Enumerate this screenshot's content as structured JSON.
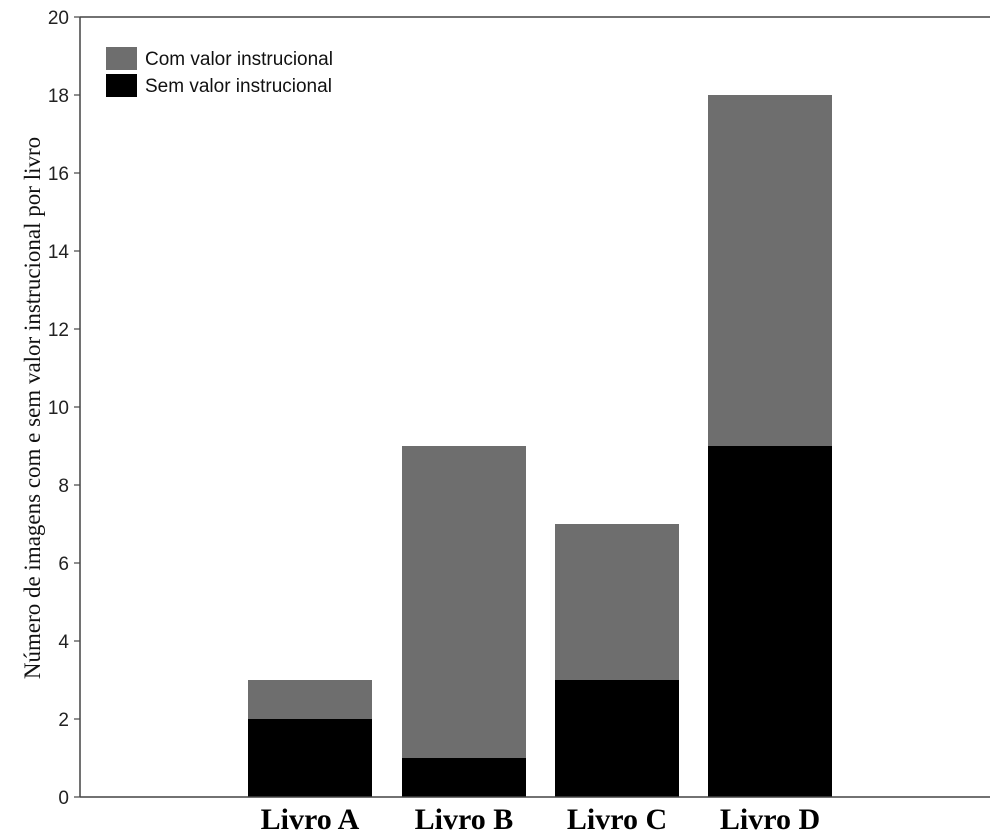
{
  "chart_data": {
    "type": "bar",
    "stacked": true,
    "categories": [
      "Livro A",
      "Livro B",
      "Livro C",
      "Livro D"
    ],
    "series": [
      {
        "name": "Sem valor instrucional",
        "values": [
          2,
          1,
          3,
          9
        ],
        "color": "#000000"
      },
      {
        "name": "Com valor instrucional",
        "values": [
          1,
          8,
          4,
          9
        ],
        "color": "#6e6e6e"
      }
    ],
    "ylabel": "Número de imagens com e sem valor instrucional por livro",
    "xlabel": "",
    "ylim": [
      0,
      20
    ],
    "yticks": [
      0,
      2,
      4,
      6,
      8,
      10,
      12,
      14,
      16,
      18,
      20
    ],
    "grid": false,
    "legend": {
      "placement": "top-left",
      "entries": [
        "Com valor instrucional",
        "Sem valor instrucional"
      ]
    }
  }
}
